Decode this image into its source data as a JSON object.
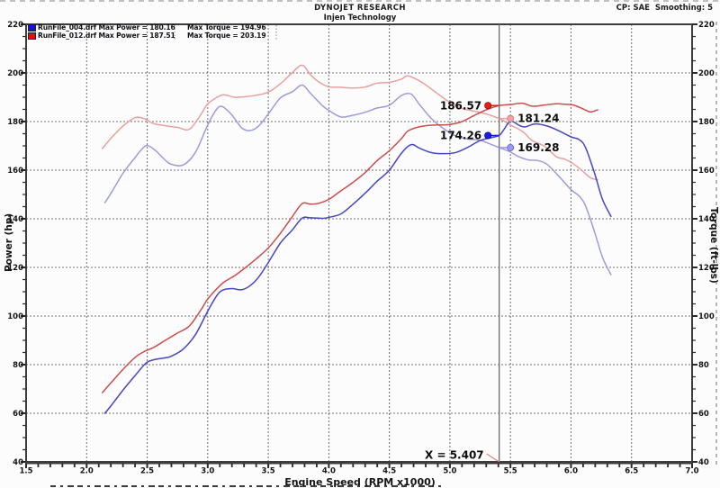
{
  "header": {
    "title": "DYNOJET RESEARCH",
    "subtitle": "Injen Technology",
    "smoothing": "CP: SAE  Smoothing: 5"
  },
  "legend": [
    {
      "file": "RunFile_004.drf",
      "power": "Max Power = 180.16",
      "torque": "Max Torque = 194.96",
      "color": "#1515d0"
    },
    {
      "file": "RunFile_012.drf",
      "power": "Max Power = 187.51",
      "torque": "Max Torque = 203.19",
      "color": "#e01010"
    }
  ],
  "axes": {
    "x": {
      "label": "Engine Speed (RPM x1000)",
      "min": 1.5,
      "max": 7.0,
      "major_step": 0.5,
      "minor_step": 0.1
    },
    "y_left": {
      "label": "Power (hp)",
      "min": 40,
      "max": 220,
      "major_step": 20,
      "minor_step": 5
    },
    "y_right": {
      "label": "Torque (ft-lbs)",
      "min": 40,
      "max": 220,
      "major_step": 20,
      "minor_step": 5
    }
  },
  "cursor": {
    "x": 5.407,
    "label": "X = 5.407"
  },
  "markers": [
    {
      "value": "186.57",
      "series": "red-power",
      "side": "left",
      "fill": "#e81c1c",
      "stroke": "#b00000",
      "y": 186.57
    },
    {
      "value": "181.24",
      "series": "red-torque",
      "side": "right",
      "fill": "#f0a4a4",
      "stroke": "#cc7777",
      "y": 181.24
    },
    {
      "value": "174.26",
      "series": "blue-power",
      "side": "left",
      "fill": "#1c1ce8",
      "stroke": "#0000a8",
      "y": 174.26
    },
    {
      "value": "169.28",
      "series": "blue-torque",
      "side": "right",
      "fill": "#9a9aec",
      "stroke": "#6666cc",
      "y": 169.28
    }
  ],
  "chart_data": {
    "type": "line",
    "xlabel": "Engine Speed (RPM x1000)",
    "ylabel_left": "Power (hp)",
    "ylabel_right": "Torque (ft-lbs)",
    "xlim": [
      1.5,
      7.0
    ],
    "ylim": [
      40,
      220
    ],
    "grid": true,
    "series": [
      {
        "name": "RunFile_004.drf Power (hp)",
        "color": "#4747c2",
        "points": [
          [
            2.15,
            60
          ],
          [
            2.2,
            63
          ],
          [
            2.3,
            69.5
          ],
          [
            2.4,
            75.5
          ],
          [
            2.45,
            78.5
          ],
          [
            2.5,
            81
          ],
          [
            2.57,
            82.2
          ],
          [
            2.65,
            82.8
          ],
          [
            2.7,
            83.5
          ],
          [
            2.8,
            86.5
          ],
          [
            2.9,
            92.5
          ],
          [
            3.0,
            102
          ],
          [
            3.07,
            108
          ],
          [
            3.12,
            110.6
          ],
          [
            3.2,
            111.3
          ],
          [
            3.28,
            110.8
          ],
          [
            3.35,
            112.5
          ],
          [
            3.42,
            116
          ],
          [
            3.5,
            122
          ],
          [
            3.6,
            130
          ],
          [
            3.7,
            135.5
          ],
          [
            3.78,
            140.3
          ],
          [
            3.85,
            140.4
          ],
          [
            3.95,
            140.2
          ],
          [
            4.0,
            140.6
          ],
          [
            4.1,
            142
          ],
          [
            4.2,
            146
          ],
          [
            4.3,
            150.5
          ],
          [
            4.4,
            155.5
          ],
          [
            4.5,
            160
          ],
          [
            4.6,
            167
          ],
          [
            4.68,
            170.5
          ],
          [
            4.75,
            169
          ],
          [
            4.85,
            167.2
          ],
          [
            4.95,
            166.8
          ],
          [
            5.05,
            167.3
          ],
          [
            5.15,
            169.5
          ],
          [
            5.25,
            172.2
          ],
          [
            5.35,
            173.5
          ],
          [
            5.407,
            174.26
          ],
          [
            5.45,
            177
          ],
          [
            5.5,
            180.16
          ],
          [
            5.57,
            178.5
          ],
          [
            5.62,
            177.8
          ],
          [
            5.7,
            179
          ],
          [
            5.8,
            178.2
          ],
          [
            5.9,
            176.2
          ],
          [
            6.0,
            173.7
          ],
          [
            6.07,
            172.5
          ],
          [
            6.12,
            169.3
          ],
          [
            6.19,
            159.5
          ],
          [
            6.26,
            148
          ],
          [
            6.33,
            141
          ]
        ]
      },
      {
        "name": "RunFile_004.drf Torque (ft-lbs)",
        "color": "#9c9cdd",
        "points": [
          [
            2.15,
            146.6
          ],
          [
            2.2,
            150.4
          ],
          [
            2.3,
            158.7
          ],
          [
            2.4,
            165.2
          ],
          [
            2.45,
            168.3
          ],
          [
            2.5,
            170.2
          ],
          [
            2.57,
            168.0
          ],
          [
            2.65,
            164.1
          ],
          [
            2.7,
            162.4
          ],
          [
            2.8,
            162.2
          ],
          [
            2.9,
            167.5
          ],
          [
            3.0,
            178.6
          ],
          [
            3.07,
            184.8
          ],
          [
            3.12,
            186.2
          ],
          [
            3.2,
            182.7
          ],
          [
            3.28,
            177.4
          ],
          [
            3.35,
            176.3
          ],
          [
            3.42,
            178.1
          ],
          [
            3.5,
            183.1
          ],
          [
            3.6,
            189.7
          ],
          [
            3.7,
            192.3
          ],
          [
            3.78,
            195.0
          ],
          [
            3.85,
            191.5
          ],
          [
            3.95,
            186.4
          ],
          [
            4.0,
            184.6
          ],
          [
            4.1,
            181.9
          ],
          [
            4.2,
            182.6
          ],
          [
            4.3,
            183.8
          ],
          [
            4.4,
            185.6
          ],
          [
            4.5,
            186.7
          ],
          [
            4.6,
            190.7
          ],
          [
            4.68,
            191.3
          ],
          [
            4.75,
            186.9
          ],
          [
            4.85,
            181.1
          ],
          [
            4.95,
            177.0
          ],
          [
            5.05,
            174.0
          ],
          [
            5.15,
            172.8
          ],
          [
            5.25,
            172.3
          ],
          [
            5.35,
            170.4
          ],
          [
            5.407,
            169.28
          ],
          [
            5.45,
            168.5
          ],
          [
            5.5,
            167.5
          ],
          [
            5.57,
            165.5
          ],
          [
            5.65,
            164.2
          ],
          [
            5.72,
            164.0
          ],
          [
            5.8,
            162.5
          ],
          [
            5.9,
            157.5
          ],
          [
            6.0,
            152.0
          ],
          [
            6.07,
            149.2
          ],
          [
            6.12,
            145.3
          ],
          [
            6.19,
            135.3
          ],
          [
            6.26,
            124.2
          ],
          [
            6.33,
            117.0
          ]
        ]
      },
      {
        "name": "RunFile_012.drf Power (hp)",
        "color": "#cc4e4e",
        "points": [
          [
            2.13,
            68.5
          ],
          [
            2.2,
            72.5
          ],
          [
            2.3,
            78
          ],
          [
            2.4,
            83
          ],
          [
            2.48,
            85.5
          ],
          [
            2.55,
            87
          ],
          [
            2.65,
            90
          ],
          [
            2.75,
            93
          ],
          [
            2.85,
            96
          ],
          [
            2.95,
            103
          ],
          [
            3.0,
            107
          ],
          [
            3.1,
            112.5
          ],
          [
            3.15,
            114.5
          ],
          [
            3.22,
            116.5
          ],
          [
            3.3,
            119.5
          ],
          [
            3.4,
            123.5
          ],
          [
            3.5,
            128
          ],
          [
            3.6,
            134
          ],
          [
            3.7,
            141
          ],
          [
            3.78,
            146.25
          ],
          [
            3.85,
            146.0
          ],
          [
            3.92,
            146.4
          ],
          [
            4.0,
            148
          ],
          [
            4.1,
            151.5
          ],
          [
            4.2,
            155
          ],
          [
            4.3,
            159
          ],
          [
            4.4,
            164
          ],
          [
            4.5,
            168
          ],
          [
            4.6,
            173
          ],
          [
            4.65,
            176
          ],
          [
            4.72,
            177.5
          ],
          [
            4.8,
            178.3
          ],
          [
            4.9,
            178.6
          ],
          [
            5.0,
            178.8
          ],
          [
            5.1,
            180
          ],
          [
            5.2,
            182.5
          ],
          [
            5.3,
            184.8
          ],
          [
            5.407,
            186.57
          ],
          [
            5.5,
            187.0
          ],
          [
            5.6,
            187.51
          ],
          [
            5.68,
            186.3
          ],
          [
            5.78,
            186.8
          ],
          [
            5.88,
            187.3
          ],
          [
            5.95,
            187.1
          ],
          [
            6.02,
            186.8
          ],
          [
            6.1,
            185.2
          ],
          [
            6.16,
            184.0
          ],
          [
            6.22,
            184.8
          ]
        ]
      },
      {
        "name": "RunFile_012.drf Torque (ft-lbs)",
        "color": "#e9a0a0",
        "points": [
          [
            2.13,
            168.9
          ],
          [
            2.2,
            173.1
          ],
          [
            2.3,
            178.1
          ],
          [
            2.4,
            181.6
          ],
          [
            2.48,
            181.1
          ],
          [
            2.55,
            179.2
          ],
          [
            2.65,
            178.3
          ],
          [
            2.75,
            177.6
          ],
          [
            2.85,
            176.9
          ],
          [
            2.95,
            183.4
          ],
          [
            3.0,
            187.3
          ],
          [
            3.1,
            190.6
          ],
          [
            3.15,
            190.9
          ],
          [
            3.22,
            190.0
          ],
          [
            3.3,
            190.2
          ],
          [
            3.4,
            190.8
          ],
          [
            3.5,
            192.1
          ],
          [
            3.6,
            195.5
          ],
          [
            3.7,
            200.2
          ],
          [
            3.78,
            203.19
          ],
          [
            3.85,
            199.2
          ],
          [
            3.92,
            196.2
          ],
          [
            4.0,
            194.3
          ],
          [
            4.1,
            194.1
          ],
          [
            4.2,
            193.8
          ],
          [
            4.3,
            194.2
          ],
          [
            4.4,
            195.8
          ],
          [
            4.5,
            196.1
          ],
          [
            4.6,
            197.5
          ],
          [
            4.65,
            198.8
          ],
          [
            4.72,
            197.5
          ],
          [
            4.8,
            195.1
          ],
          [
            4.9,
            191.4
          ],
          [
            5.0,
            187.9
          ],
          [
            5.1,
            185.4
          ],
          [
            5.2,
            184.3
          ],
          [
            5.3,
            183.1
          ],
          [
            5.407,
            181.24
          ],
          [
            5.5,
            178.6
          ],
          [
            5.6,
            175.9
          ],
          [
            5.68,
            172.2
          ],
          [
            5.78,
            169.9
          ],
          [
            5.88,
            165.5
          ],
          [
            5.95,
            164.5
          ],
          [
            6.02,
            162.6
          ],
          [
            6.1,
            159.5
          ],
          [
            6.16,
            156.9
          ],
          [
            6.22,
            156.0
          ]
        ]
      }
    ]
  },
  "style": {
    "grid_color": "#6f6f6f",
    "border_color": "#3d3d3d",
    "cursor_color": "#6e6e6e",
    "tick_color": "#2a2a2a",
    "label_color": "#141414",
    "annotation_line_color": "#e06868"
  }
}
